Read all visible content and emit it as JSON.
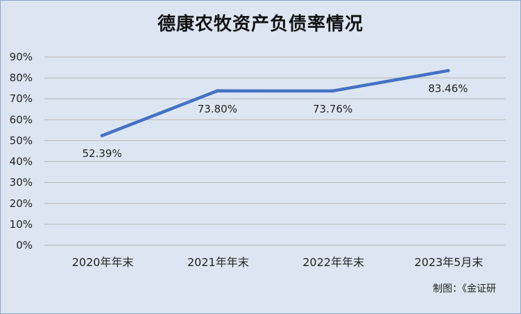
{
  "chart_data": {
    "type": "line",
    "title": "德康农牧资产负债率情况",
    "categories": [
      "2020年年末",
      "2021年年末",
      "2022年年末",
      "2023年5月末"
    ],
    "series": [
      {
        "values": [
          52.39,
          73.8,
          73.76,
          83.46
        ]
      }
    ],
    "data_labels": [
      "52.39%",
      "73.80%",
      "73.76%",
      "83.46%"
    ],
    "y_tick_labels": [
      "0%",
      "10%",
      "20%",
      "30%",
      "40%",
      "50%",
      "60%",
      "70%",
      "80%",
      "90%"
    ],
    "ylim": [
      0,
      90
    ],
    "y_unit": "%",
    "grid": true,
    "legend": "none",
    "line_color": "#4472c4",
    "background_color": "#dce6f2",
    "source_note": "制图：《金证研"
  }
}
